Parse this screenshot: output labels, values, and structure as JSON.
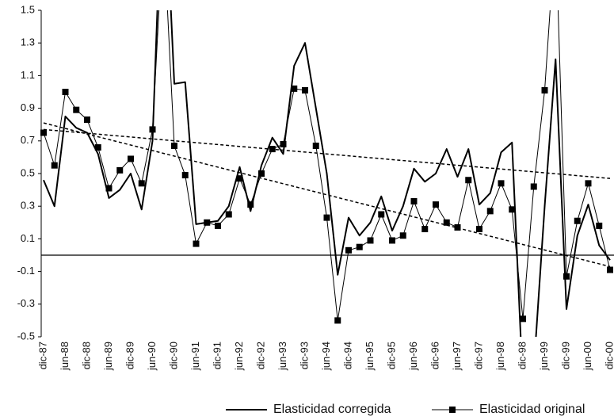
{
  "chart_data": {
    "type": "line",
    "categories": [
      "dic-87",
      null,
      "jun-88",
      null,
      "dic-88",
      null,
      "jun-89",
      null,
      "dic-89",
      null,
      "jun-90",
      null,
      "dic-90",
      null,
      "jun-91",
      null,
      "dic-91",
      null,
      "jun-92",
      null,
      "dic-92",
      null,
      "jun-93",
      null,
      "dic-93",
      null,
      "jun-94",
      null,
      "dic-94",
      null,
      "jun-95",
      null,
      "dic-95",
      null,
      "jun-96",
      null,
      "dic-96",
      null,
      "jun-97",
      null,
      "dic-97",
      null,
      "jun-98",
      null,
      "dic-98",
      null,
      "jun-99",
      null,
      "dic-99",
      null,
      "jun-00",
      null,
      "dic-00"
    ],
    "series": [
      {
        "name": "Elasticidad corregida",
        "color": "#000000",
        "marker": false,
        "values": [
          0.46,
          0.3,
          0.85,
          0.78,
          0.75,
          0.62,
          0.35,
          0.4,
          0.5,
          0.28,
          0.7,
          2.5,
          1.05,
          1.06,
          0.19,
          0.2,
          0.21,
          0.3,
          0.54,
          0.27,
          0.55,
          0.72,
          0.62,
          1.16,
          1.3,
          0.9,
          0.5,
          -0.12,
          0.23,
          0.12,
          0.2,
          0.36,
          0.15,
          0.3,
          0.53,
          0.45,
          0.5,
          0.65,
          0.48,
          0.65,
          0.31,
          0.38,
          0.63,
          0.69,
          -0.8,
          -0.7,
          0.3,
          1.2,
          -0.33,
          0.12,
          0.31,
          0.06,
          -0.03
        ]
      },
      {
        "name": "Elasticidad original",
        "color": "#000000",
        "marker": true,
        "values": [
          0.75,
          0.55,
          1.0,
          0.89,
          0.83,
          0.66,
          0.41,
          0.52,
          0.59,
          0.44,
          0.77,
          2.0,
          0.67,
          0.49,
          0.07,
          0.2,
          0.18,
          0.25,
          0.47,
          0.31,
          0.5,
          0.65,
          0.68,
          1.02,
          1.01,
          0.67,
          0.23,
          -0.4,
          0.03,
          0.05,
          0.09,
          0.25,
          0.09,
          0.12,
          0.33,
          0.16,
          0.31,
          0.2,
          0.17,
          0.46,
          0.16,
          0.27,
          0.44,
          0.28,
          -0.39,
          0.42,
          1.01,
          2.0,
          -0.13,
          0.21,
          0.44,
          0.18,
          -0.09
        ]
      }
    ],
    "trend_lines": [
      {
        "values": [
          0.81,
          -0.07
        ]
      },
      {
        "values": [
          0.77,
          0.47
        ]
      }
    ],
    "ylim": [
      -0.5,
      1.5
    ],
    "yticks": [
      -0.5,
      -0.3,
      -0.1,
      0.1,
      0.3,
      0.5,
      0.7,
      0.9,
      1.1,
      1.3,
      1.5
    ]
  }
}
